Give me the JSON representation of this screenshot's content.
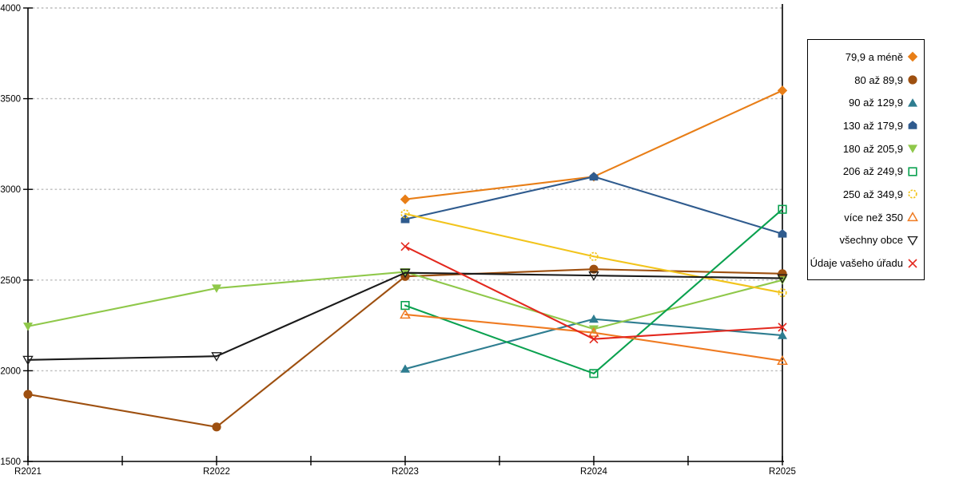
{
  "chart_data": {
    "type": "line",
    "title": "",
    "xlabel": "",
    "ylabel": "",
    "categories": [
      "R2021",
      "R2022",
      "R2023",
      "R2024",
      "R2025"
    ],
    "y_ticks": [
      1500,
      2000,
      2500,
      3000,
      3500,
      4000
    ],
    "ylim": [
      1500,
      4000
    ],
    "grid": "dashed-horizontal",
    "gridline_color": "#bcbcbc",
    "axis_color": "#000000",
    "legend_position": "right-outside",
    "right_frame_line_at": "R2025",
    "series": [
      {
        "name": "79,9 a méně",
        "color": "#E87E17",
        "marker": "diamond-filled",
        "values": [
          null,
          null,
          2945,
          3070,
          3545
        ]
      },
      {
        "name": "80 až 89,9",
        "color": "#9E5010",
        "marker": "circle-filled",
        "values": [
          1870,
          1690,
          2520,
          2560,
          2535
        ]
      },
      {
        "name": "90 až 129,9",
        "color": "#2E7D90",
        "marker": "triangle-up-filled",
        "values": [
          null,
          null,
          2010,
          2285,
          2195
        ]
      },
      {
        "name": "130 až 179,9",
        "color": "#2F5B8E",
        "marker": "pentagon-filled",
        "values": [
          null,
          null,
          2835,
          3070,
          2755
        ]
      },
      {
        "name": "180 až 205,9",
        "color": "#8FC84A",
        "marker": "triangle-down-filled",
        "values": [
          2245,
          2455,
          2545,
          2230,
          2500
        ]
      },
      {
        "name": "206 až 249,9",
        "color": "#0AA14F",
        "marker": "square-open",
        "values": [
          null,
          null,
          2360,
          1985,
          2890
        ]
      },
      {
        "name": "250 až 349,9",
        "color": "#F2C41C",
        "marker": "circle-open-dashed",
        "values": [
          null,
          null,
          2865,
          2630,
          2430
        ]
      },
      {
        "name": "více než 350",
        "color": "#EF7B22",
        "marker": "triangle-up-open",
        "values": [
          null,
          null,
          2310,
          2210,
          2055
        ]
      },
      {
        "name": "všechny obce",
        "color": "#1A1A1A",
        "marker": "triangle-down-open",
        "values": [
          2060,
          2080,
          2540,
          2525,
          2510
        ]
      },
      {
        "name": "Údaje vašeho úřadu",
        "color": "#E3281E",
        "marker": "x-cross",
        "values": [
          null,
          null,
          2685,
          2175,
          2240
        ]
      }
    ]
  }
}
